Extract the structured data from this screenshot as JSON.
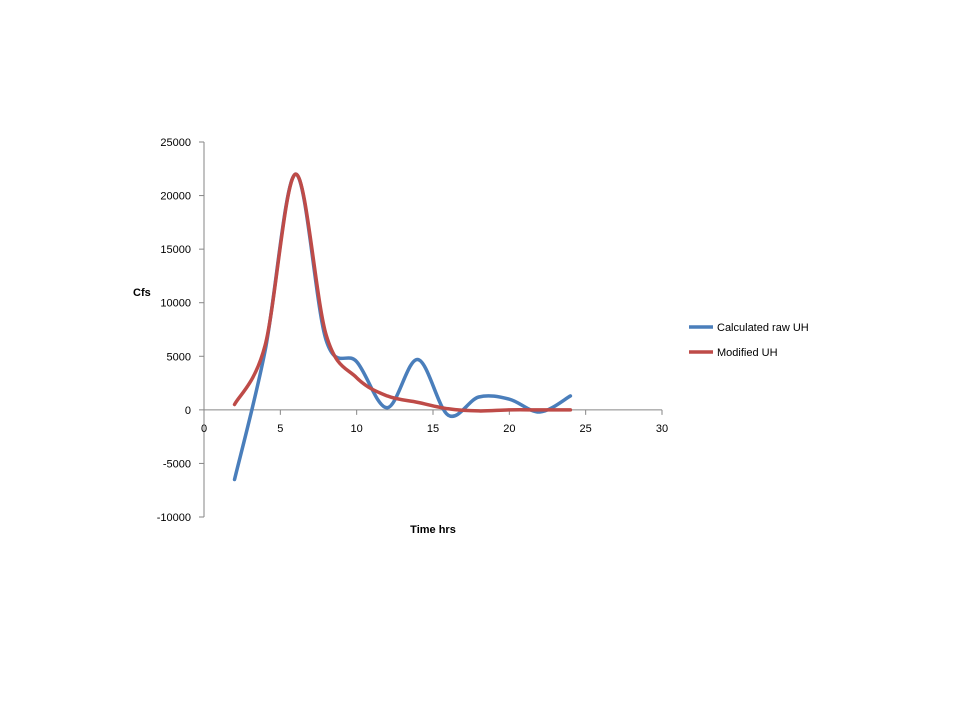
{
  "chart_data": {
    "type": "line",
    "title": "",
    "xlabel": "Time hrs",
    "ylabel": "Cfs",
    "xlim": [
      0,
      30
    ],
    "ylim": [
      -10000,
      25000
    ],
    "x_ticks": [
      0,
      5,
      10,
      15,
      20,
      25,
      30
    ],
    "y_ticks": [
      25000,
      20000,
      15000,
      10000,
      5000,
      0,
      -5000,
      -10000
    ],
    "x_tick_labels": [
      "0",
      "5",
      "10",
      "15",
      "20",
      "25",
      "30"
    ],
    "y_tick_labels": [
      "25000",
      "20000",
      "15000",
      "10000",
      "5000",
      "0",
      "-5000",
      "-10000"
    ],
    "grid": false,
    "legend_position": "right",
    "series": [
      {
        "name": "Calculated raw UH",
        "color": "#4A7EBB",
        "x": [
          2,
          4,
          6,
          8,
          10,
          12,
          14,
          16,
          18,
          20,
          22,
          24
        ],
        "y": [
          -6500,
          5500,
          22000,
          6500,
          4500,
          200,
          4700,
          -500,
          1200,
          1000,
          -200,
          1300
        ]
      },
      {
        "name": "Modified UH",
        "color": "#BE4B48",
        "x": [
          2,
          4,
          6,
          8,
          10,
          12,
          14,
          16,
          18,
          20,
          22,
          24
        ],
        "y": [
          500,
          6000,
          22000,
          7000,
          3000,
          1300,
          700,
          100,
          -100,
          0,
          0,
          0
        ]
      }
    ]
  }
}
